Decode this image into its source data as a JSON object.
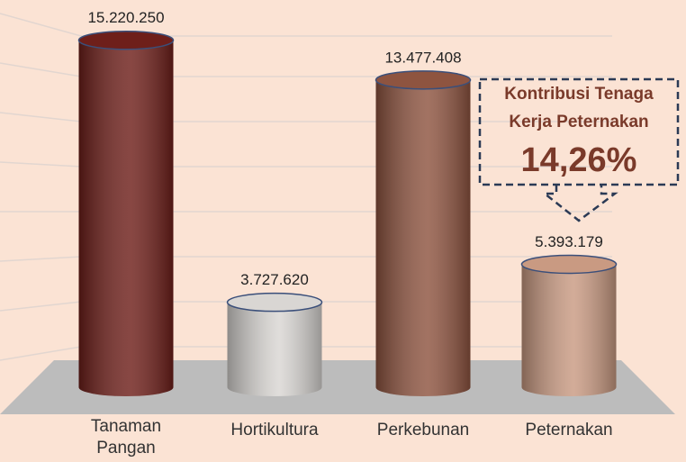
{
  "chart_data": {
    "type": "cylinder-bar",
    "categories": [
      "Tanaman Pangan",
      "Hortikultura",
      "Perkebunan",
      "Peternakan"
    ],
    "values": [
      15220250,
      3727620,
      13477408,
      5393179
    ],
    "value_labels": [
      "15.220.250",
      "3.727.620",
      "13.477.408",
      "5.393.179"
    ],
    "colors": [
      "#6e1f1a",
      "#d9d6d3",
      "#8e5440",
      "#c99a82"
    ],
    "ylim": [
      0,
      16000000
    ],
    "annotation": {
      "lines": [
        "Kontribusi Tenaga",
        "Kerja Peternakan"
      ],
      "value": "14,26%"
    }
  }
}
